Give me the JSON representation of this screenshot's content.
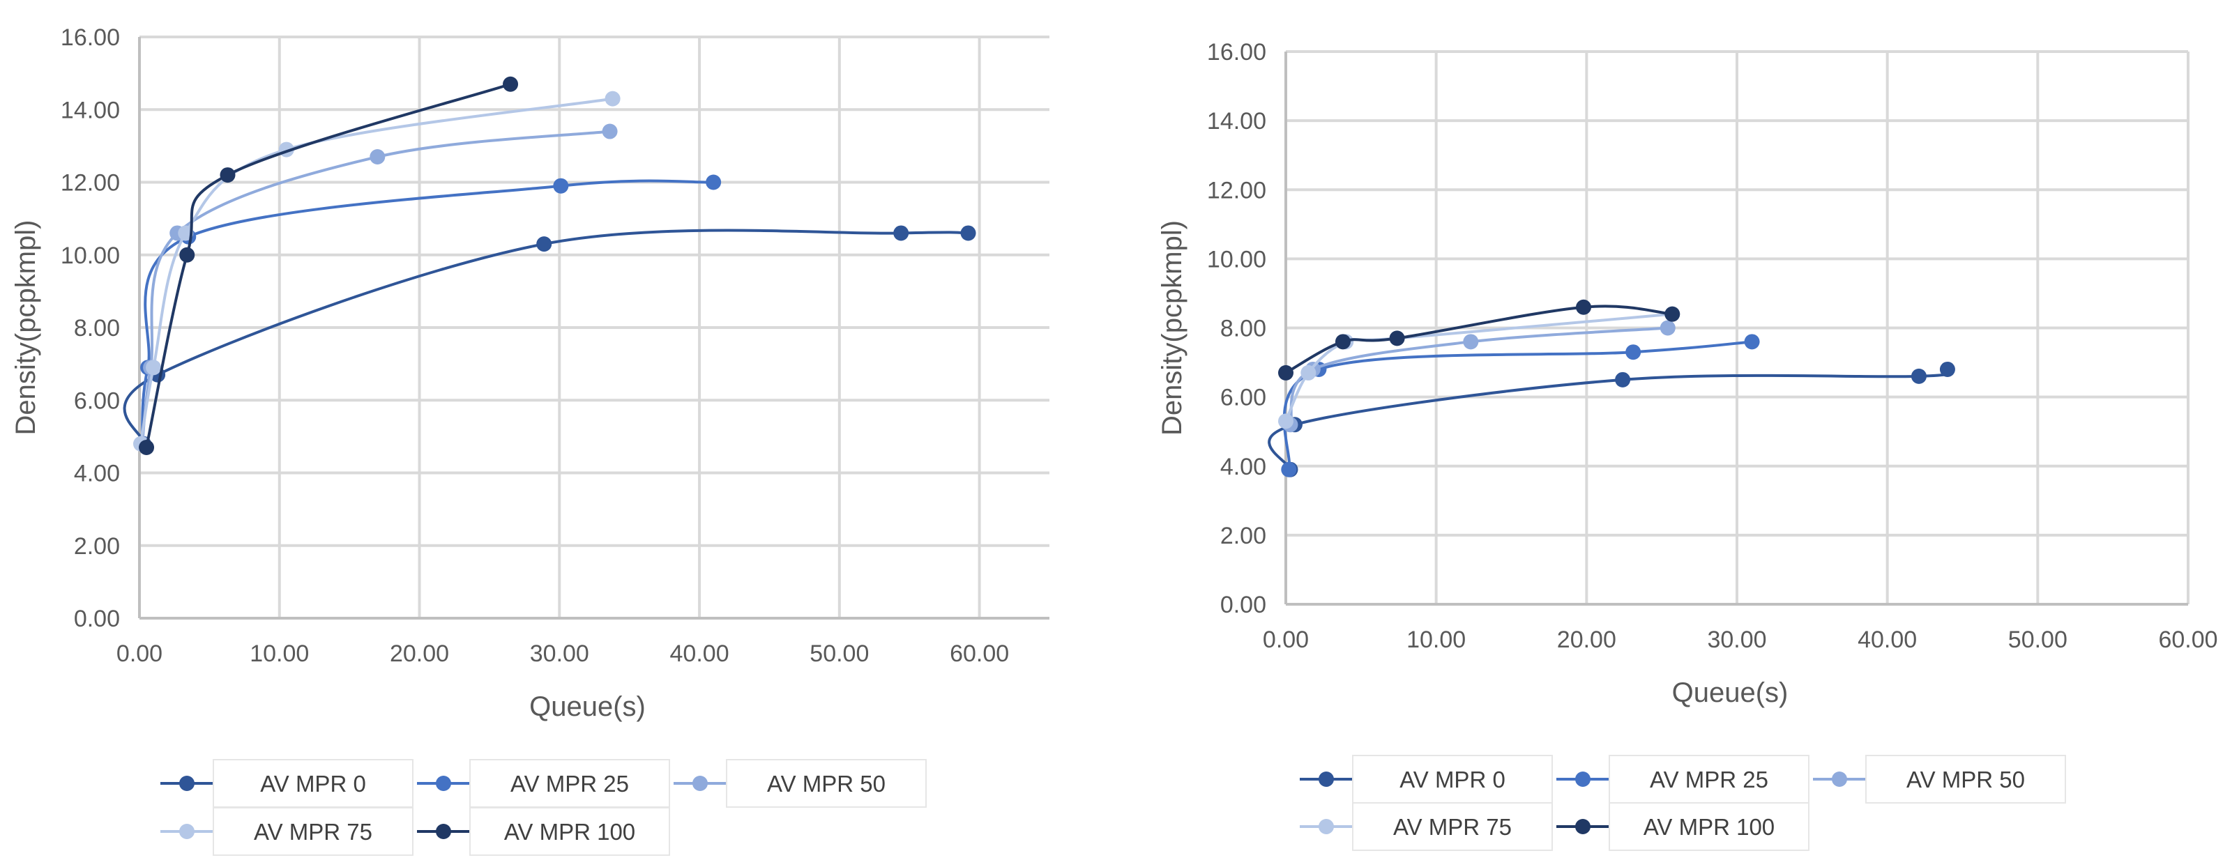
{
  "chart_data": [
    {
      "type": "scatter",
      "mode": "smooth-lines-with-markers",
      "title": "",
      "xlabel": "Queue(s)",
      "ylabel": "Density(pcpkmpl)",
      "xlim": [
        0,
        65
      ],
      "ylim": [
        0,
        16
      ],
      "x_ticks": [
        "0.00",
        "10.00",
        "20.00",
        "30.00",
        "40.00",
        "50.00",
        "60.00"
      ],
      "y_ticks": [
        "0.00",
        "2.00",
        "4.00",
        "6.00",
        "8.00",
        "10.00",
        "12.00",
        "14.00",
        "16.00"
      ],
      "grid": true,
      "legend_position": "bottom",
      "series": [
        {
          "name": "AV MPR 0",
          "color": "#2f5597",
          "points": [
            [
              0.3,
              4.8
            ],
            [
              1.3,
              6.7
            ],
            [
              28.9,
              10.3
            ],
            [
              54.4,
              10.6
            ],
            [
              59.2,
              10.6
            ]
          ]
        },
        {
          "name": "AV MPR 25",
          "color": "#4472c4",
          "points": [
            [
              0.2,
              4.8
            ],
            [
              0.6,
              6.9
            ],
            [
              3.5,
              10.5
            ],
            [
              30.1,
              11.9
            ],
            [
              41.0,
              12.0
            ]
          ]
        },
        {
          "name": "AV MPR 50",
          "color": "#8faadc",
          "points": [
            [
              0.2,
              4.8
            ],
            [
              0.8,
              6.9
            ],
            [
              2.7,
              10.6
            ],
            [
              17.0,
              12.7
            ],
            [
              33.6,
              13.4
            ]
          ]
        },
        {
          "name": "AV MPR 75",
          "color": "#b4c7e7",
          "points": [
            [
              0.1,
              4.8
            ],
            [
              1.0,
              6.9
            ],
            [
              3.3,
              10.6
            ],
            [
              10.5,
              12.9
            ],
            [
              33.8,
              14.3
            ]
          ]
        },
        {
          "name": "AV MPR 100",
          "color": "#203864",
          "points": [
            [
              0.5,
              4.7
            ],
            [
              3.4,
              10.0
            ],
            [
              6.3,
              12.2
            ],
            [
              26.5,
              14.7
            ]
          ]
        }
      ]
    },
    {
      "type": "scatter",
      "mode": "smooth-lines-with-markers",
      "title": "",
      "xlabel": "Queue(s)",
      "ylabel": "Density(pcpkmpl)",
      "xlim": [
        0,
        60
      ],
      "ylim": [
        0,
        16
      ],
      "x_ticks": [
        "0.00",
        "10.00",
        "20.00",
        "30.00",
        "40.00",
        "50.00",
        "60.00"
      ],
      "y_ticks": [
        "0.00",
        "2.00",
        "4.00",
        "6.00",
        "8.00",
        "10.00",
        "12.00",
        "14.00",
        "16.00"
      ],
      "grid": true,
      "legend_position": "bottom",
      "series": [
        {
          "name": "AV MPR 0",
          "color": "#2f5597",
          "points": [
            [
              0.3,
              3.9
            ],
            [
              0.6,
              5.2
            ],
            [
              22.4,
              6.5
            ],
            [
              42.1,
              6.6
            ],
            [
              44.0,
              6.8
            ]
          ]
        },
        {
          "name": "AV MPR 25",
          "color": "#4472c4",
          "points": [
            [
              0.2,
              3.9
            ],
            [
              2.2,
              6.8
            ],
            [
              23.1,
              7.3
            ],
            [
              31.0,
              7.6
            ]
          ]
        },
        {
          "name": "AV MPR 50",
          "color": "#8faadc",
          "points": [
            [
              0.3,
              5.2
            ],
            [
              1.8,
              6.8
            ],
            [
              12.3,
              7.6
            ],
            [
              25.4,
              8.0
            ]
          ]
        },
        {
          "name": "AV MPR 75",
          "color": "#b4c7e7",
          "points": [
            [
              0.0,
              5.3
            ],
            [
              1.5,
              6.7
            ],
            [
              4.0,
              7.6
            ],
            [
              7.4,
              7.7
            ],
            [
              25.7,
              8.4
            ]
          ]
        },
        {
          "name": "AV MPR 100",
          "color": "#203864",
          "points": [
            [
              0.0,
              6.7
            ],
            [
              3.8,
              7.6
            ],
            [
              7.4,
              7.7
            ],
            [
              19.8,
              8.6
            ],
            [
              25.7,
              8.4
            ]
          ]
        }
      ]
    }
  ]
}
